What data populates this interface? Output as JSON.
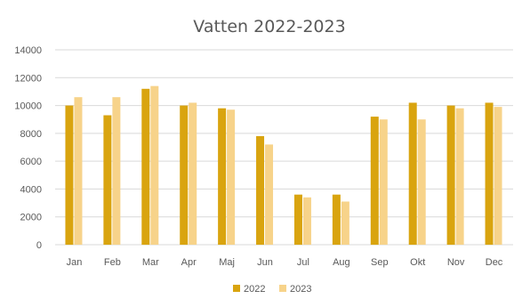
{
  "chart_data": {
    "type": "bar",
    "title": "Vatten 2022-2023",
    "xlabel": "",
    "ylabel": "",
    "categories": [
      "Jan",
      "Feb",
      "Mar",
      "Apr",
      "Maj",
      "Jun",
      "Jul",
      "Aug",
      "Sep",
      "Okt",
      "Nov",
      "Dec"
    ],
    "series": [
      {
        "name": "2022",
        "color": "#d9a40f",
        "values": [
          10000,
          9300,
          11200,
          10000,
          9800,
          7800,
          3600,
          3600,
          9200,
          10200,
          10000,
          10200
        ]
      },
      {
        "name": "2023",
        "color": "#f7d38a",
        "values": [
          10600,
          10600,
          11400,
          10200,
          9700,
          7200,
          3400,
          3100,
          9000,
          9000,
          9800,
          9900
        ]
      }
    ],
    "ylim": [
      0,
      14000
    ],
    "yticks": [
      "0",
      "2000",
      "4000",
      "6000",
      "8000",
      "10000",
      "12000",
      "14000"
    ],
    "grid": true,
    "legend_position": "bottom"
  }
}
